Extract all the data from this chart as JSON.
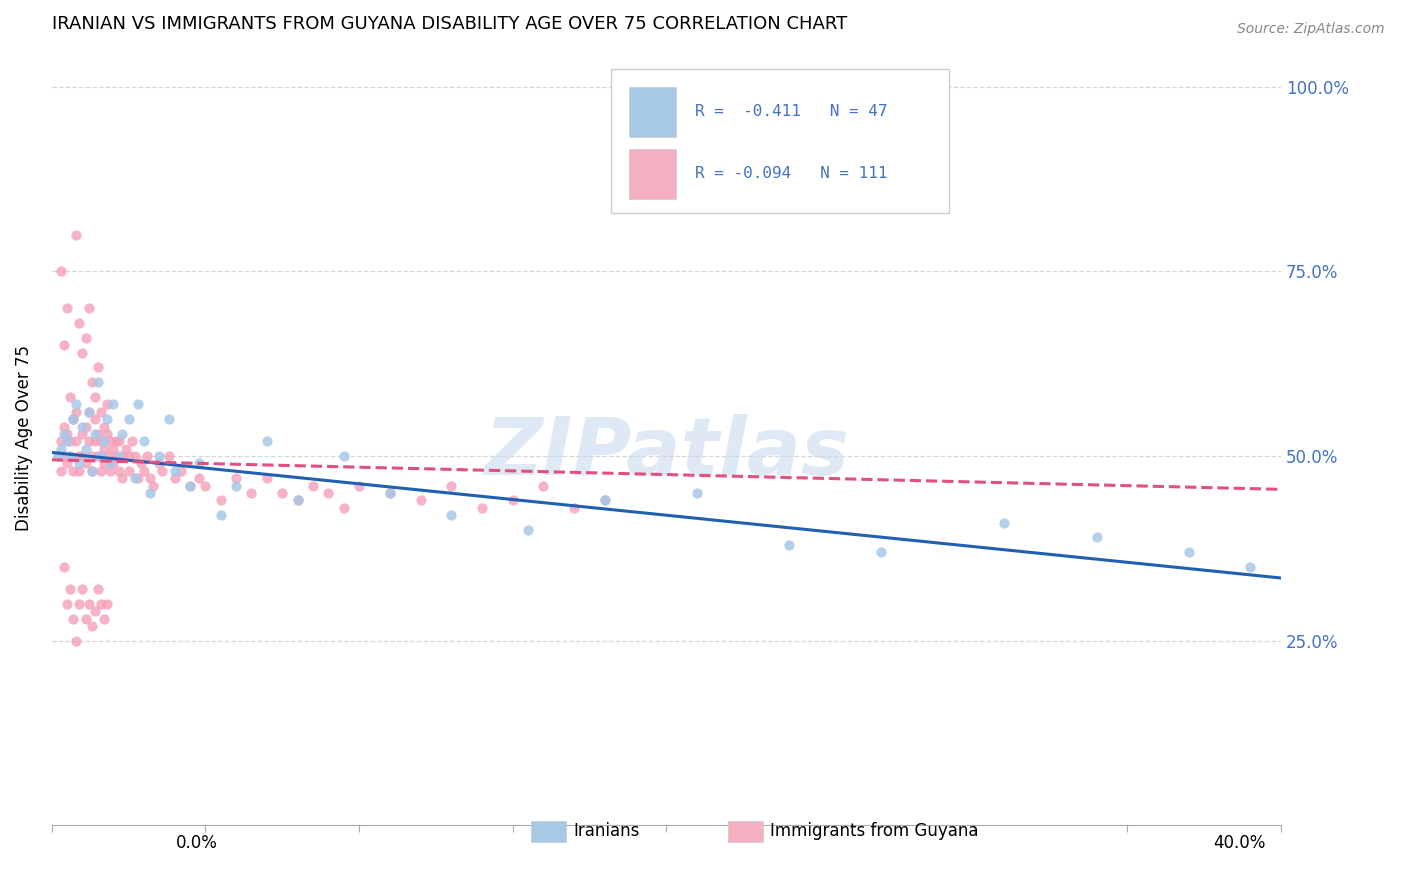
{
  "title": "IRANIAN VS IMMIGRANTS FROM GUYANA DISABILITY AGE OVER 75 CORRELATION CHART",
  "source": "Source: ZipAtlas.com",
  "ylabel": "Disability Age Over 75",
  "right_yticks": [
    "100.0%",
    "75.0%",
    "50.0%",
    "25.0%"
  ],
  "right_ytick_vals": [
    1.0,
    0.75,
    0.5,
    0.25
  ],
  "xmin": 0.0,
  "xmax": 0.4,
  "ymin": 0.0,
  "ymax": 1.05,
  "iranians_R": -0.411,
  "iranians_N": 47,
  "guyana_R": -0.094,
  "guyana_N": 111,
  "color_iranian": "#a8c8e8",
  "color_guyana": "#f4a0b8",
  "color_line_iranian": "#2060b0",
  "color_line_guyana": "#e05080",
  "legend_color_iranian": "#a8c8e8",
  "legend_color_guyana": "#f4b0c0",
  "watermark": "ZIPatlas",
  "ir_line_x0": 0.0,
  "ir_line_y0": 0.505,
  "ir_line_x1": 0.4,
  "ir_line_y1": 0.335,
  "gu_line_x0": 0.0,
  "gu_line_y0": 0.495,
  "gu_line_x1": 0.4,
  "gu_line_y1": 0.455,
  "iranians_x": [
    0.002,
    0.003,
    0.004,
    0.005,
    0.006,
    0.007,
    0.008,
    0.009,
    0.01,
    0.011,
    0.012,
    0.013,
    0.014,
    0.015,
    0.016,
    0.017,
    0.018,
    0.019,
    0.02,
    0.022,
    0.023,
    0.025,
    0.027,
    0.028,
    0.03,
    0.032,
    0.035,
    0.038,
    0.04,
    0.045,
    0.048,
    0.055,
    0.06,
    0.07,
    0.08,
    0.095,
    0.11,
    0.13,
    0.155,
    0.18,
    0.21,
    0.24,
    0.27,
    0.31,
    0.34,
    0.37,
    0.39
  ],
  "iranians_y": [
    0.5,
    0.51,
    0.53,
    0.52,
    0.5,
    0.55,
    0.57,
    0.49,
    0.54,
    0.51,
    0.56,
    0.48,
    0.53,
    0.6,
    0.5,
    0.52,
    0.55,
    0.49,
    0.57,
    0.5,
    0.53,
    0.55,
    0.47,
    0.57,
    0.52,
    0.45,
    0.5,
    0.55,
    0.48,
    0.46,
    0.49,
    0.42,
    0.46,
    0.52,
    0.44,
    0.5,
    0.45,
    0.42,
    0.4,
    0.44,
    0.45,
    0.38,
    0.37,
    0.41,
    0.39,
    0.37,
    0.35
  ],
  "guyana_x": [
    0.002,
    0.003,
    0.003,
    0.004,
    0.004,
    0.005,
    0.005,
    0.006,
    0.006,
    0.007,
    0.007,
    0.008,
    0.008,
    0.009,
    0.009,
    0.01,
    0.01,
    0.011,
    0.011,
    0.012,
    0.012,
    0.013,
    0.013,
    0.014,
    0.014,
    0.015,
    0.015,
    0.016,
    0.016,
    0.017,
    0.017,
    0.018,
    0.018,
    0.019,
    0.019,
    0.02,
    0.02,
    0.021,
    0.021,
    0.022,
    0.022,
    0.023,
    0.023,
    0.024,
    0.025,
    0.025,
    0.026,
    0.027,
    0.028,
    0.029,
    0.03,
    0.031,
    0.032,
    0.033,
    0.035,
    0.036,
    0.038,
    0.04,
    0.042,
    0.045,
    0.048,
    0.05,
    0.055,
    0.06,
    0.065,
    0.07,
    0.075,
    0.08,
    0.085,
    0.09,
    0.095,
    0.1,
    0.11,
    0.12,
    0.13,
    0.14,
    0.15,
    0.16,
    0.17,
    0.18,
    0.003,
    0.004,
    0.005,
    0.006,
    0.007,
    0.008,
    0.009,
    0.01,
    0.011,
    0.012,
    0.013,
    0.014,
    0.015,
    0.016,
    0.017,
    0.018,
    0.004,
    0.005,
    0.006,
    0.007,
    0.008,
    0.009,
    0.01,
    0.011,
    0.012,
    0.013,
    0.014,
    0.015,
    0.016,
    0.017,
    0.018
  ],
  "guyana_y": [
    0.5,
    0.52,
    0.48,
    0.5,
    0.54,
    0.49,
    0.53,
    0.5,
    0.52,
    0.55,
    0.48,
    0.52,
    0.56,
    0.5,
    0.48,
    0.53,
    0.5,
    0.54,
    0.49,
    0.52,
    0.56,
    0.5,
    0.48,
    0.52,
    0.55,
    0.5,
    0.53,
    0.48,
    0.52,
    0.51,
    0.49,
    0.53,
    0.5,
    0.52,
    0.48,
    0.51,
    0.49,
    0.52,
    0.5,
    0.48,
    0.52,
    0.5,
    0.47,
    0.51,
    0.5,
    0.48,
    0.52,
    0.5,
    0.47,
    0.49,
    0.48,
    0.5,
    0.47,
    0.46,
    0.49,
    0.48,
    0.5,
    0.47,
    0.48,
    0.46,
    0.47,
    0.46,
    0.44,
    0.47,
    0.45,
    0.47,
    0.45,
    0.44,
    0.46,
    0.45,
    0.43,
    0.46,
    0.45,
    0.44,
    0.46,
    0.43,
    0.44,
    0.46,
    0.43,
    0.44,
    0.75,
    0.65,
    0.7,
    0.58,
    0.55,
    0.8,
    0.68,
    0.64,
    0.66,
    0.7,
    0.6,
    0.58,
    0.62,
    0.56,
    0.54,
    0.57,
    0.35,
    0.3,
    0.32,
    0.28,
    0.25,
    0.3,
    0.32,
    0.28,
    0.3,
    0.27,
    0.29,
    0.32,
    0.3,
    0.28,
    0.3
  ]
}
